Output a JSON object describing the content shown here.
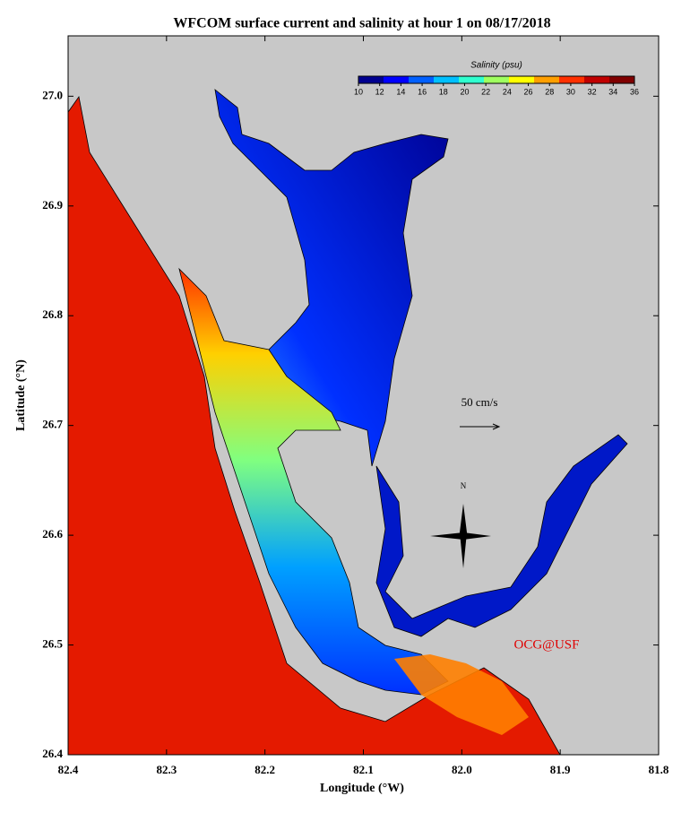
{
  "chart_data": {
    "type": "map",
    "title": "WFCOM surface current and salinity at hour 1 on 08/17/2018",
    "x_label": "Longitude (°W)",
    "y_label": "Latitude (°N)",
    "xlim": [
      82.4,
      81.8
    ],
    "xticks": [
      82.4,
      82.3,
      82.2,
      82.1,
      {
        "value": 82,
        "label": "82.0"
      },
      81.9,
      81.8
    ],
    "ylim": [
      26.4,
      27.055
    ],
    "yticks": [
      26.4,
      26.5,
      26.6,
      26.7,
      26.8,
      26.9,
      {
        "value": 27,
        "label": "27.0"
      }
    ],
    "colorbar": {
      "title": "Salinity (psu)",
      "lim": [
        10,
        36
      ],
      "ticks": [
        10,
        12,
        14,
        16,
        18,
        20,
        22,
        24,
        26,
        28,
        30,
        32,
        34,
        36
      ],
      "colors": [
        "#00008f",
        "#0000ff",
        "#0060ff",
        "#00c0ff",
        "#30ffcf",
        "#9fff60",
        "#ffff00",
        "#ff9f00",
        "#ff3000",
        "#c00000",
        "#800000"
      ]
    },
    "annotations": {
      "vector_scale": "50 cm/s",
      "credit": "OCG@USF",
      "north": "N"
    }
  }
}
